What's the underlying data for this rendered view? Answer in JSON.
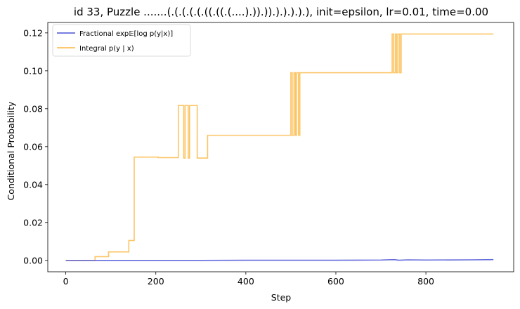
{
  "chart_data": {
    "type": "line",
    "title": "id 33, Puzzle .......(.(.(.(.(.((.((.(....).)).)).).).).).), init=epsilon, lr=0.01, time=0.00",
    "xlabel": "Step",
    "ylabel": "Conditional Probability",
    "xlim": [
      -40,
      995
    ],
    "ylim": [
      -0.006,
      0.1255
    ],
    "xticks": [
      0,
      200,
      400,
      600,
      800
    ],
    "yticks": [
      0.0,
      0.02,
      0.04,
      0.06,
      0.08,
      0.1,
      0.12
    ],
    "xtick_labels": [
      "0",
      "200",
      "400",
      "600",
      "800"
    ],
    "ytick_labels": [
      "0.00",
      "0.02",
      "0.04",
      "0.06",
      "0.08",
      "0.10",
      "0.12"
    ],
    "grid": false,
    "legend_position": "top-left",
    "series": [
      {
        "name": "Fractional exp 𝔼[log p(y|x)]",
        "color": "#4a52d6",
        "drawstyle": "line",
        "x": [
          0,
          100,
          200,
          300,
          400,
          500,
          600,
          700,
          730,
          740,
          760,
          800,
          900,
          950
        ],
        "y": [
          0.0,
          0.0,
          0.0,
          0.0,
          0.0001,
          0.0001,
          0.0001,
          0.0002,
          0.0004,
          0.0001,
          0.0003,
          0.0002,
          0.0003,
          0.0004
        ]
      },
      {
        "name": "Integral p(y | x)",
        "color": "#fbb73f",
        "drawstyle": "steps-post",
        "x": [
          0,
          65,
          95,
          140,
          148,
          152,
          200,
          205,
          250,
          258,
          262,
          265,
          268,
          272,
          275,
          288,
          292,
          295,
          310,
          315,
          500,
          503,
          507,
          510,
          513,
          517,
          520,
          523,
          725,
          728,
          732,
          735,
          738,
          742,
          745,
          950
        ],
        "y": [
          0.0,
          0.002,
          0.0045,
          0.0105,
          0.0105,
          0.0545,
          0.0545,
          0.0542,
          0.0817,
          0.0817,
          0.054,
          0.0817,
          0.0817,
          0.054,
          0.0817,
          0.0817,
          0.054,
          0.054,
          0.054,
          0.066,
          0.099,
          0.066,
          0.099,
          0.066,
          0.099,
          0.066,
          0.099,
          0.099,
          0.1194,
          0.099,
          0.1194,
          0.099,
          0.1194,
          0.099,
          0.1194,
          0.1194
        ]
      }
    ]
  },
  "legend": {
    "fractional_label": "Fractional exp𝔼[log p(y|x)]",
    "integral_label": "Integral p(y | x)"
  }
}
